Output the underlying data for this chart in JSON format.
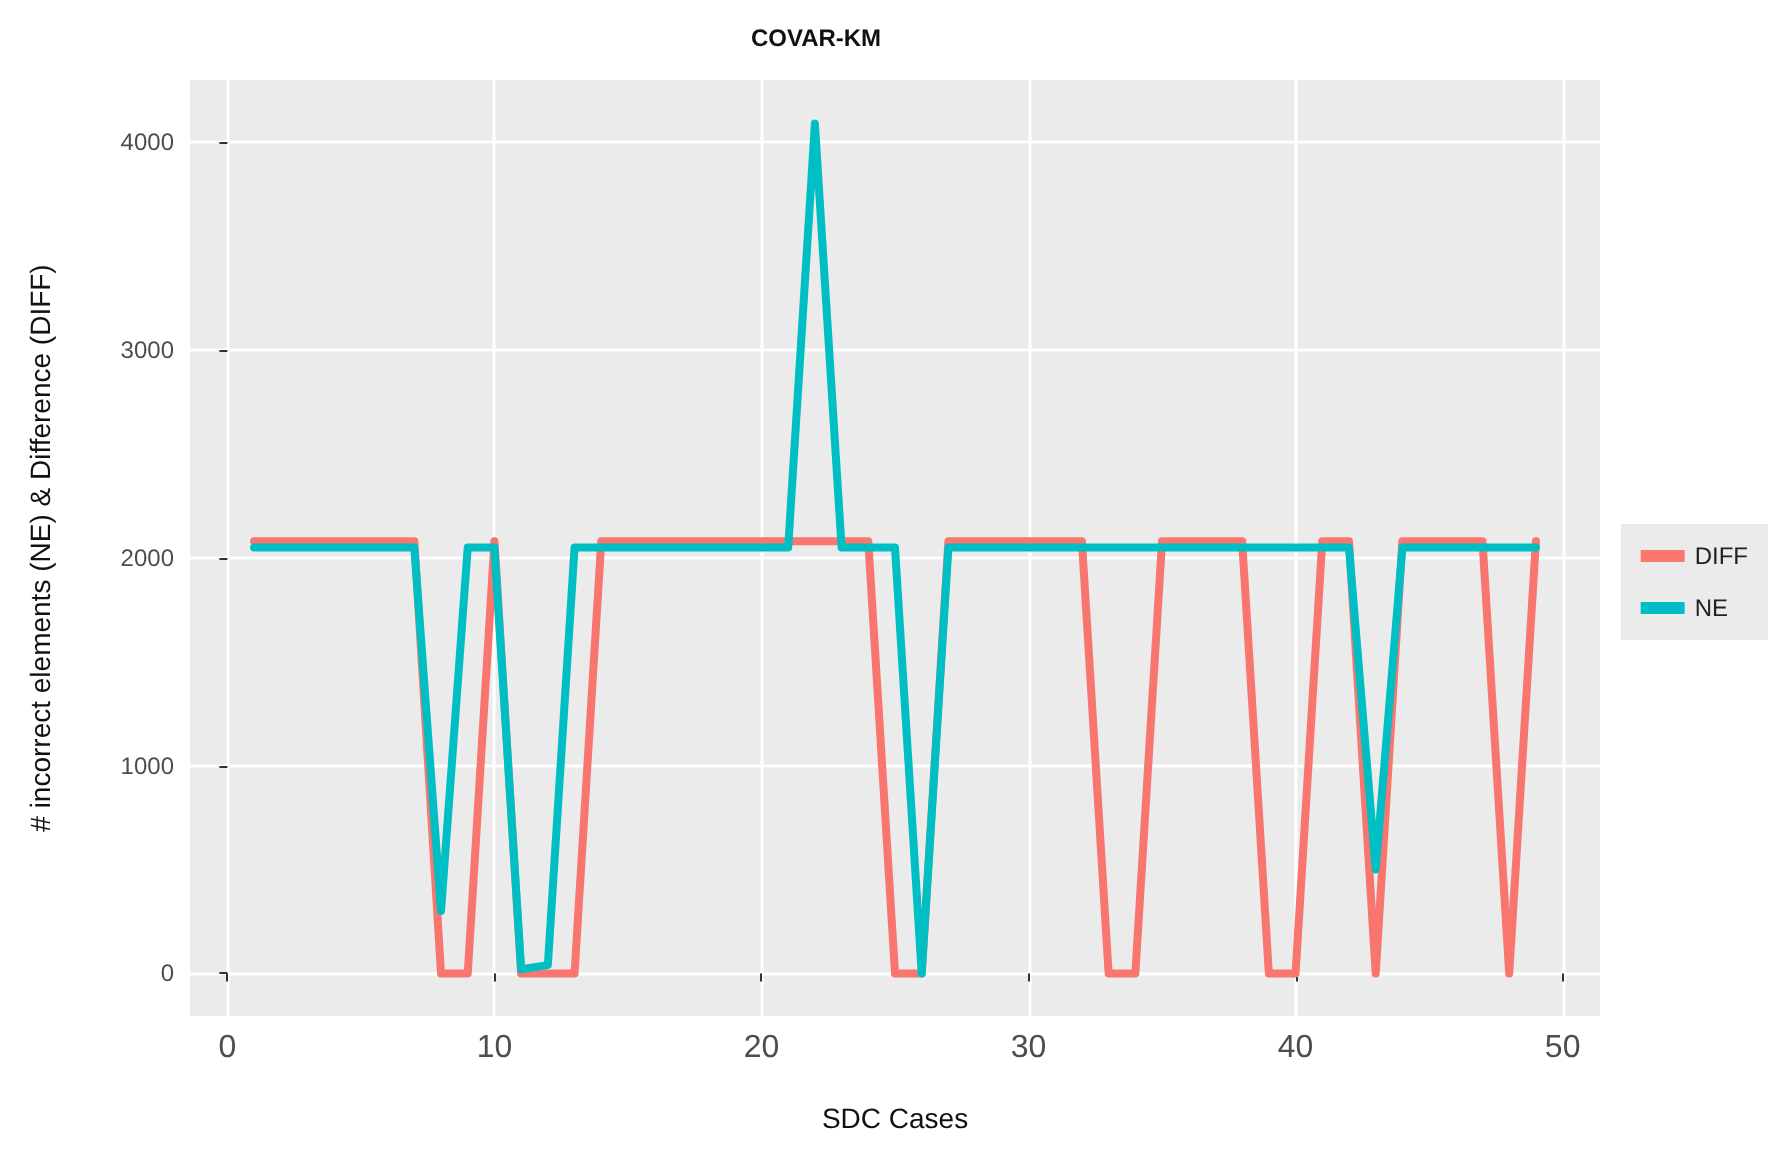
{
  "chart_data": {
    "type": "line",
    "title": "COVAR-KM",
    "xlabel": "SDC Cases",
    "ylabel": "# incorrect elements (NE) & Difference (DIFF)",
    "x": [
      1,
      2,
      3,
      4,
      5,
      6,
      7,
      8,
      9,
      10,
      11,
      12,
      13,
      14,
      15,
      16,
      17,
      18,
      19,
      20,
      21,
      22,
      23,
      24,
      25,
      26,
      27,
      28,
      29,
      30,
      31,
      32,
      33,
      34,
      35,
      36,
      37,
      38,
      39,
      40,
      41,
      42,
      43,
      44,
      45,
      46,
      47,
      48,
      49
    ],
    "series": [
      {
        "name": "DIFF",
        "color": "#f8766d",
        "values": [
          2080,
          2080,
          2080,
          2080,
          2080,
          2080,
          2080,
          0,
          0,
          2080,
          0,
          0,
          0,
          2080,
          2080,
          2080,
          2080,
          2080,
          2080,
          2080,
          2080,
          2080,
          2080,
          2080,
          0,
          0,
          2080,
          2080,
          2080,
          2080,
          2080,
          2080,
          0,
          0,
          2080,
          2080,
          2080,
          2080,
          0,
          0,
          2080,
          2080,
          0,
          2080,
          2080,
          2080,
          2080,
          0,
          2080
        ]
      },
      {
        "name": "NE",
        "color": "#00bfc4",
        "values": [
          2050,
          2050,
          2050,
          2050,
          2050,
          2050,
          2050,
          300,
          2050,
          2050,
          20,
          40,
          2050,
          2050,
          2050,
          2050,
          2050,
          2050,
          2050,
          2050,
          2050,
          4090,
          2050,
          2050,
          2050,
          0,
          2050,
          2050,
          2050,
          2050,
          2050,
          2050,
          2050,
          2050,
          2050,
          2050,
          2050,
          2050,
          2050,
          2050,
          2050,
          2050,
          500,
          2050,
          2050,
          2050,
          2050,
          2050,
          2050
        ]
      }
    ],
    "xlim": [
      -1.4,
      51.4
    ],
    "xticks": [
      0,
      10,
      20,
      30,
      40,
      50
    ],
    "ylim": [
      -205,
      4300
    ],
    "yticks": [
      0,
      1000,
      2000,
      3000,
      4000
    ],
    "grid": true,
    "legend": "right",
    "marker": "none",
    "line_style": "solid"
  }
}
